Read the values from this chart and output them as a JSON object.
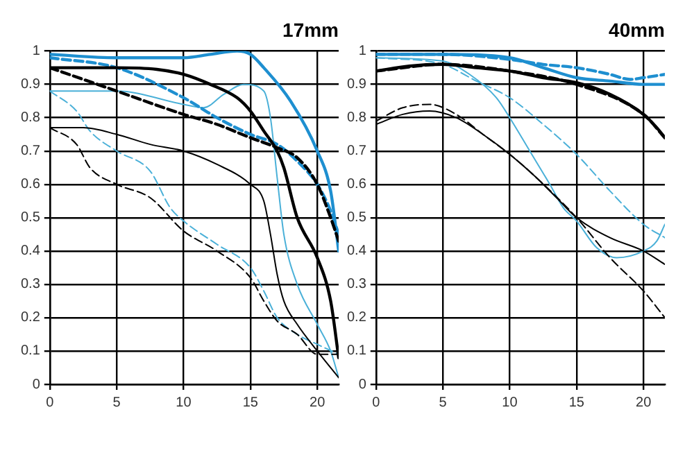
{
  "chart_data": [
    {
      "type": "line",
      "title": "17mm",
      "xlim": [
        0,
        21.6
      ],
      "xticks": [
        0,
        5,
        10,
        15,
        20
      ],
      "ylim": [
        0,
        1
      ],
      "yticks": [
        0,
        0.1,
        0.2,
        0.3,
        0.4,
        0.5,
        0.6,
        0.7,
        0.8,
        0.9,
        1
      ],
      "grid": true,
      "legend": false,
      "marker": "none",
      "series": [
        {
          "color": "#000000",
          "line_style": "solid",
          "x": [
            0,
            5,
            8,
            10,
            12,
            14,
            15,
            16,
            17,
            17.5,
            18.5,
            20,
            21,
            21.6
          ],
          "values": [
            0.95,
            0.95,
            0.945,
            0.93,
            0.9,
            0.86,
            0.82,
            0.76,
            0.7,
            0.65,
            0.5,
            0.38,
            0.25,
            0.08
          ]
        },
        {
          "color": "#000000",
          "line_style": "dashed",
          "x": [
            0,
            5,
            10,
            12.5,
            15,
            17,
            18.5,
            20,
            21,
            21.6
          ],
          "values": [
            0.95,
            0.88,
            0.81,
            0.78,
            0.74,
            0.71,
            0.68,
            0.6,
            0.5,
            0.43
          ]
        },
        {
          "color": "#000000",
          "line_style": "solid",
          "x": [
            0,
            2.5,
            5,
            7.5,
            10,
            12.5,
            15,
            16,
            16.5,
            17,
            17.5,
            18.5,
            20,
            21.6
          ],
          "values": [
            0.77,
            0.77,
            0.75,
            0.72,
            0.7,
            0.66,
            0.6,
            0.55,
            0.45,
            0.33,
            0.25,
            0.18,
            0.1,
            0.02
          ]
        },
        {
          "color": "#000000",
          "line_style": "dashed",
          "x": [
            0,
            2,
            3,
            5,
            7.5,
            10,
            12.5,
            15,
            16,
            17,
            18.5,
            20,
            21.6
          ],
          "values": [
            0.77,
            0.72,
            0.65,
            0.6,
            0.56,
            0.46,
            0.4,
            0.32,
            0.25,
            0.19,
            0.15,
            0.09,
            0.09
          ]
        },
        {
          "color": "#1e8fd0",
          "line_style": "solid",
          "x": [
            0,
            5,
            10,
            12,
            14,
            15,
            16,
            18,
            20,
            21,
            21.6
          ],
          "values": [
            0.99,
            0.98,
            0.98,
            0.99,
            1.0,
            0.99,
            0.95,
            0.85,
            0.7,
            0.58,
            0.4
          ]
        },
        {
          "color": "#1e8fd0",
          "line_style": "dashed",
          "x": [
            0,
            5,
            10,
            12.5,
            15,
            17,
            18.5,
            20,
            21,
            21.6
          ],
          "values": [
            0.98,
            0.95,
            0.86,
            0.8,
            0.75,
            0.72,
            0.67,
            0.6,
            0.52,
            0.45
          ]
        },
        {
          "color": "#4ab0d8",
          "line_style": "solid",
          "x": [
            0,
            5,
            10,
            11.5,
            13,
            14.5,
            16,
            16.5,
            17,
            17.5,
            18.5,
            20,
            21,
            21.6
          ],
          "values": [
            0.88,
            0.88,
            0.84,
            0.83,
            0.87,
            0.9,
            0.88,
            0.8,
            0.62,
            0.45,
            0.3,
            0.18,
            0.1,
            0.02
          ]
        },
        {
          "color": "#4ab0d8",
          "line_style": "dashed",
          "x": [
            0,
            2,
            3,
            5,
            7.5,
            9,
            10,
            12.5,
            15,
            16,
            17,
            18.5,
            20,
            21.6
          ],
          "values": [
            0.88,
            0.82,
            0.76,
            0.7,
            0.64,
            0.53,
            0.49,
            0.42,
            0.35,
            0.28,
            0.2,
            0.15,
            0.12,
            0.09
          ]
        }
      ]
    },
    {
      "type": "line",
      "title": "40mm",
      "xlim": [
        0,
        21.6
      ],
      "xticks": [
        0,
        5,
        10,
        15,
        20
      ],
      "ylim": [
        0,
        1
      ],
      "yticks": [
        0,
        0.1,
        0.2,
        0.3,
        0.4,
        0.5,
        0.6,
        0.7,
        0.8,
        0.9,
        1
      ],
      "grid": true,
      "legend": false,
      "marker": "none",
      "series": [
        {
          "color": "#000000",
          "line_style": "solid",
          "x": [
            0,
            2.5,
            5,
            7.5,
            10,
            12.5,
            15,
            17.5,
            20,
            21,
            21.6
          ],
          "values": [
            0.94,
            0.955,
            0.96,
            0.95,
            0.94,
            0.92,
            0.905,
            0.87,
            0.81,
            0.77,
            0.74
          ]
        },
        {
          "color": "#000000",
          "line_style": "dashed",
          "x": [
            0,
            5,
            10,
            15,
            20,
            21.6
          ],
          "values": [
            0.94,
            0.96,
            0.94,
            0.9,
            0.81,
            0.74
          ]
        },
        {
          "color": "#000000",
          "line_style": "solid",
          "x": [
            0,
            2,
            4,
            6,
            8,
            10,
            12,
            13.5,
            15,
            17.5,
            20,
            21.6
          ],
          "values": [
            0.78,
            0.81,
            0.82,
            0.8,
            0.75,
            0.69,
            0.62,
            0.56,
            0.5,
            0.44,
            0.4,
            0.36
          ]
        },
        {
          "color": "#000000",
          "line_style": "dashed",
          "x": [
            0,
            2,
            4,
            6,
            8,
            10,
            12,
            15,
            17.5,
            20,
            21.6
          ],
          "values": [
            0.79,
            0.83,
            0.84,
            0.81,
            0.75,
            0.69,
            0.62,
            0.5,
            0.38,
            0.28,
            0.2
          ]
        },
        {
          "color": "#1e8fd0",
          "line_style": "solid",
          "x": [
            0,
            5,
            10,
            12.5,
            15,
            17.5,
            20,
            21.6
          ],
          "values": [
            0.99,
            0.99,
            0.98,
            0.95,
            0.92,
            0.91,
            0.9,
            0.9
          ]
        },
        {
          "color": "#1e8fd0",
          "line_style": "dashed",
          "x": [
            0,
            5,
            10,
            12.5,
            15,
            17.5,
            19,
            20,
            21.6
          ],
          "values": [
            0.99,
            0.99,
            0.975,
            0.96,
            0.95,
            0.93,
            0.915,
            0.92,
            0.93
          ]
        },
        {
          "color": "#4ab0d8",
          "line_style": "solid",
          "x": [
            0,
            5,
            7,
            9,
            10,
            11.5,
            13,
            14,
            15,
            16.5,
            18,
            20,
            21,
            21.6
          ],
          "values": [
            0.98,
            0.97,
            0.93,
            0.86,
            0.8,
            0.7,
            0.6,
            0.53,
            0.49,
            0.41,
            0.38,
            0.4,
            0.43,
            0.48
          ]
        },
        {
          "color": "#4ab0d8",
          "line_style": "dashed",
          "x": [
            0,
            5,
            7.5,
            10,
            12.5,
            15,
            17.5,
            20,
            21.6
          ],
          "values": [
            0.98,
            0.96,
            0.91,
            0.86,
            0.78,
            0.69,
            0.58,
            0.48,
            0.44
          ]
        }
      ]
    }
  ]
}
